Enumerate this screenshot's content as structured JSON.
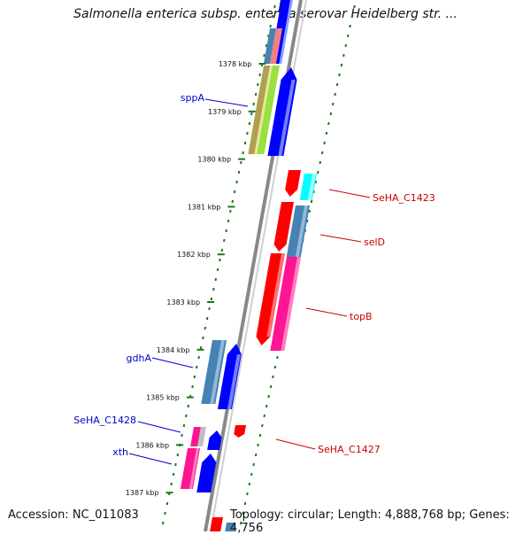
{
  "title": "Salmonella enterica subsp. enterica serovar Heidelberg str. ...",
  "footer": {
    "accession": "Accession: NC_011083",
    "topology": "Topology: circular; Length: 4,888,768 bp; Genes: 4,756"
  },
  "ticks": [
    "1378 kbp",
    "1379 kbp",
    "1380 kbp",
    "1381 kbp",
    "1382 kbp",
    "1383 kbp",
    "1384 kbp",
    "1385 kbp",
    "1386 kbp",
    "1387 kbp"
  ],
  "gene_labels": {
    "left": [
      "sppA",
      "gdhA",
      "SeHA_C1428",
      "xth"
    ],
    "right": [
      "SeHA_C1423",
      "selD",
      "topB",
      "SeHA_C1427"
    ]
  },
  "colors": {
    "left_label": "#0000cc",
    "right_label": "#cc0000",
    "dots": "#1a7a1a",
    "backbone": "#888888"
  }
}
